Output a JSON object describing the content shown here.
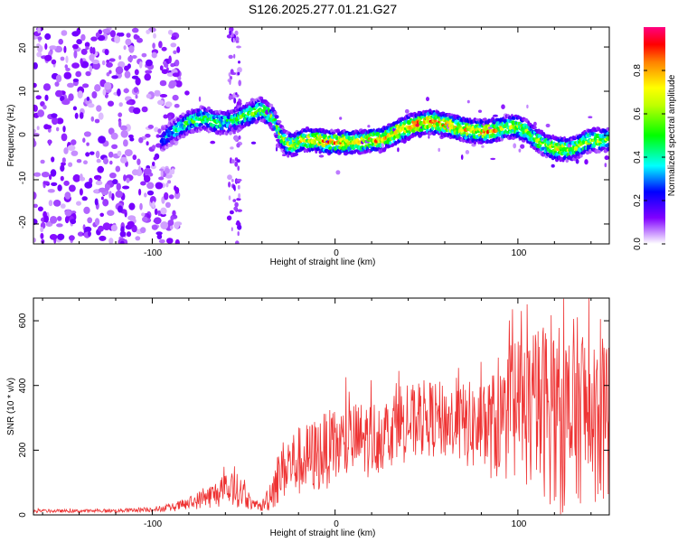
{
  "title": "S126.2025.277.01.21.G27",
  "chart_data": [
    {
      "type": "heatmap",
      "panel": "top",
      "title": "S126.2025.277.01.21.G27",
      "xlabel": "Height of straight line (km)",
      "ylabel": "Frequency (Hz)",
      "xlim": [
        -165,
        150
      ],
      "ylim": [
        -24.5,
        24.5
      ],
      "x_ticks": [
        -100,
        0,
        100
      ],
      "y_ticks": [
        -20,
        -10,
        0,
        10,
        20
      ],
      "x_tick_labels": [
        "-100",
        "0",
        "100"
      ],
      "y_tick_labels": [
        "-20",
        "-10",
        "0",
        "10",
        "20"
      ],
      "colorbar": {
        "label": "Normalized spectral amplitude",
        "range": [
          0,
          1
        ],
        "ticks": [
          0.0,
          0.2,
          0.4,
          0.6,
          0.8
        ],
        "tick_labels": [
          "0.0",
          "0.2",
          "0.4",
          "0.6",
          "0.8"
        ],
        "colors": [
          "#ffffff",
          "#a020f0",
          "#0000ff",
          "#00ffff",
          "#00ff00",
          "#ffff00",
          "#ff8000",
          "#ff0000",
          "#ff0080"
        ]
      },
      "ridge": {
        "x": [
          -95,
          -88,
          -80,
          -72,
          -65,
          -58,
          -52,
          -46,
          -40,
          -34,
          -30,
          -26,
          -22,
          -18,
          -14,
          -10,
          -5,
          0,
          5,
          10,
          15,
          20,
          25,
          30,
          35,
          40,
          45,
          50,
          55,
          60,
          65,
          70,
          75,
          80,
          85,
          90,
          95,
          100,
          105,
          110,
          115,
          120,
          125,
          130,
          135,
          140,
          145,
          150
        ],
        "freq": [
          -1,
          1,
          3,
          4,
          3,
          3,
          4,
          5,
          6,
          4,
          0,
          -2,
          -2,
          -1,
          -1,
          -1,
          -1.5,
          -1.5,
          -1.5,
          -1.5,
          -1.5,
          -1,
          -1,
          0,
          1,
          2,
          2.5,
          3,
          3,
          2.5,
          2,
          1.5,
          1,
          1,
          1,
          1.5,
          2,
          2,
          1,
          -1,
          -2,
          -3,
          -3,
          -3,
          -2,
          -1,
          -1,
          -1
        ],
        "peak_amplitude": [
          0.35,
          0.45,
          0.55,
          0.6,
          0.55,
          0.5,
          0.6,
          0.65,
          0.7,
          0.6,
          0.6,
          0.7,
          0.75,
          0.8,
          0.85,
          0.85,
          0.9,
          0.9,
          0.9,
          0.85,
          0.85,
          0.9,
          0.9,
          0.9,
          0.95,
          0.95,
          0.95,
          0.95,
          0.95,
          0.9,
          0.9,
          0.85,
          0.85,
          0.9,
          0.95,
          0.8,
          0.7,
          0.7,
          0.65,
          0.7,
          0.7,
          0.75,
          0.8,
          0.75,
          0.7,
          0.7,
          0.7,
          0.7
        ]
      },
      "noise_region_x": [
        -165,
        -95
      ]
    },
    {
      "type": "line",
      "panel": "bottom",
      "xlabel": "Height of straight line (km)",
      "ylabel": "SNR (10 * v/v)",
      "xlim": [
        -165,
        150
      ],
      "ylim": [
        0,
        670
      ],
      "x_ticks": [
        -100,
        0,
        100
      ],
      "y_ticks": [
        0,
        200,
        400,
        600
      ],
      "x_tick_labels": [
        "-100",
        "0",
        "100"
      ],
      "y_tick_labels": [
        "0",
        "200",
        "400",
        "600"
      ],
      "color": "#ff0000",
      "envelope": {
        "x": [
          -165,
          -140,
          -120,
          -100,
          -90,
          -80,
          -70,
          -60,
          -55,
          -50,
          -45,
          -40,
          -35,
          -30,
          -25,
          -20,
          -15,
          -10,
          -5,
          0,
          5,
          10,
          20,
          30,
          35,
          40,
          50,
          60,
          70,
          80,
          90,
          95,
          100,
          110,
          115,
          120,
          125,
          130,
          135,
          140,
          145,
          150
        ],
        "mean": [
          12,
          12,
          13,
          17,
          22,
          35,
          55,
          75,
          80,
          65,
          30,
          25,
          70,
          130,
          160,
          165,
          175,
          185,
          200,
          210,
          220,
          230,
          235,
          260,
          290,
          280,
          300,
          290,
          280,
          270,
          280,
          300,
          330,
          320,
          330,
          300,
          280,
          310,
          330,
          300,
          290,
          300
        ],
        "amplitude": [
          5,
          5,
          6,
          8,
          12,
          20,
          35,
          50,
          55,
          45,
          15,
          15,
          60,
          90,
          100,
          110,
          110,
          120,
          120,
          120,
          120,
          120,
          120,
          110,
          130,
          120,
          120,
          120,
          130,
          150,
          180,
          200,
          230,
          260,
          280,
          290,
          300,
          300,
          290,
          280,
          260,
          250
        ]
      },
      "peaks": [
        {
          "x": 125,
          "y": 668
        },
        {
          "x": 102,
          "y": 630
        },
        {
          "x": 145,
          "y": 605
        },
        {
          "x": 35,
          "y": 445
        },
        {
          "x": -55,
          "y": 150
        }
      ]
    }
  ]
}
